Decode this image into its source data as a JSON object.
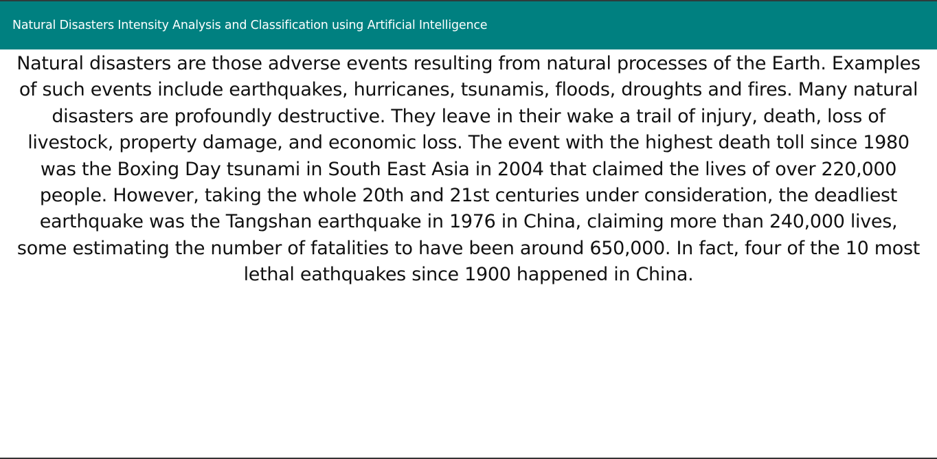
{
  "header": {
    "title": "Natural Disasters Intensity Analysis and Classification using Artificial Intelligence"
  },
  "main": {
    "intro": "Natural disasters are those adverse events resulting from natural processes of the Earth. Examples of such events include earthquakes, hurricanes, tsunamis, floods, droughts and fires. Many natural disasters are profoundly destructive. They leave in their wake a trail of injury, death, loss of livestock, property damage, and economic loss. The event with the highest death toll since 1980 was the Boxing Day tsunami in South East Asia in 2004 that claimed the lives of over 220,000 people. However, taking the whole 20th and 21st centuries under consideration, the deadliest earthquake was the Tangshan earthquake in 1976 in China, claiming more than 240,000 lives, some estimating the number of fatalities to have been around 650,000. In fact, four of the 10 most lethal eathquakes since 1900 happened in China."
  },
  "colors": {
    "header_background": "#008080",
    "header_text": "#ffffff",
    "body_text": "#111111",
    "page_background": "#ffffff"
  }
}
